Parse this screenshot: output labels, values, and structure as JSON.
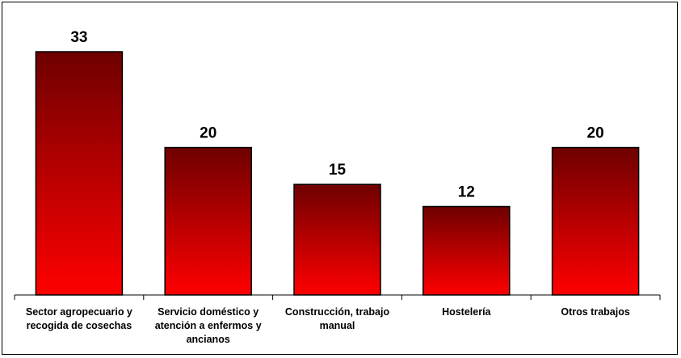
{
  "chart_data": {
    "type": "bar",
    "categories": [
      [
        "Sector agropecuario y",
        "recogida de cosechas"
      ],
      [
        "Servicio doméstico y",
        "atención a enfermos y",
        "ancianos"
      ],
      [
        "Construcción, trabajo",
        "manual"
      ],
      [
        "Hostelería"
      ],
      [
        "Otros trabajos"
      ]
    ],
    "values": [
      33,
      20,
      15,
      12,
      20
    ],
    "ylim": [
      0,
      33
    ],
    "grid": false,
    "data_labels": true,
    "colors": {
      "bar_top": "#6e0000",
      "bar_bottom": "#ff0000",
      "outline": "#000000"
    }
  }
}
